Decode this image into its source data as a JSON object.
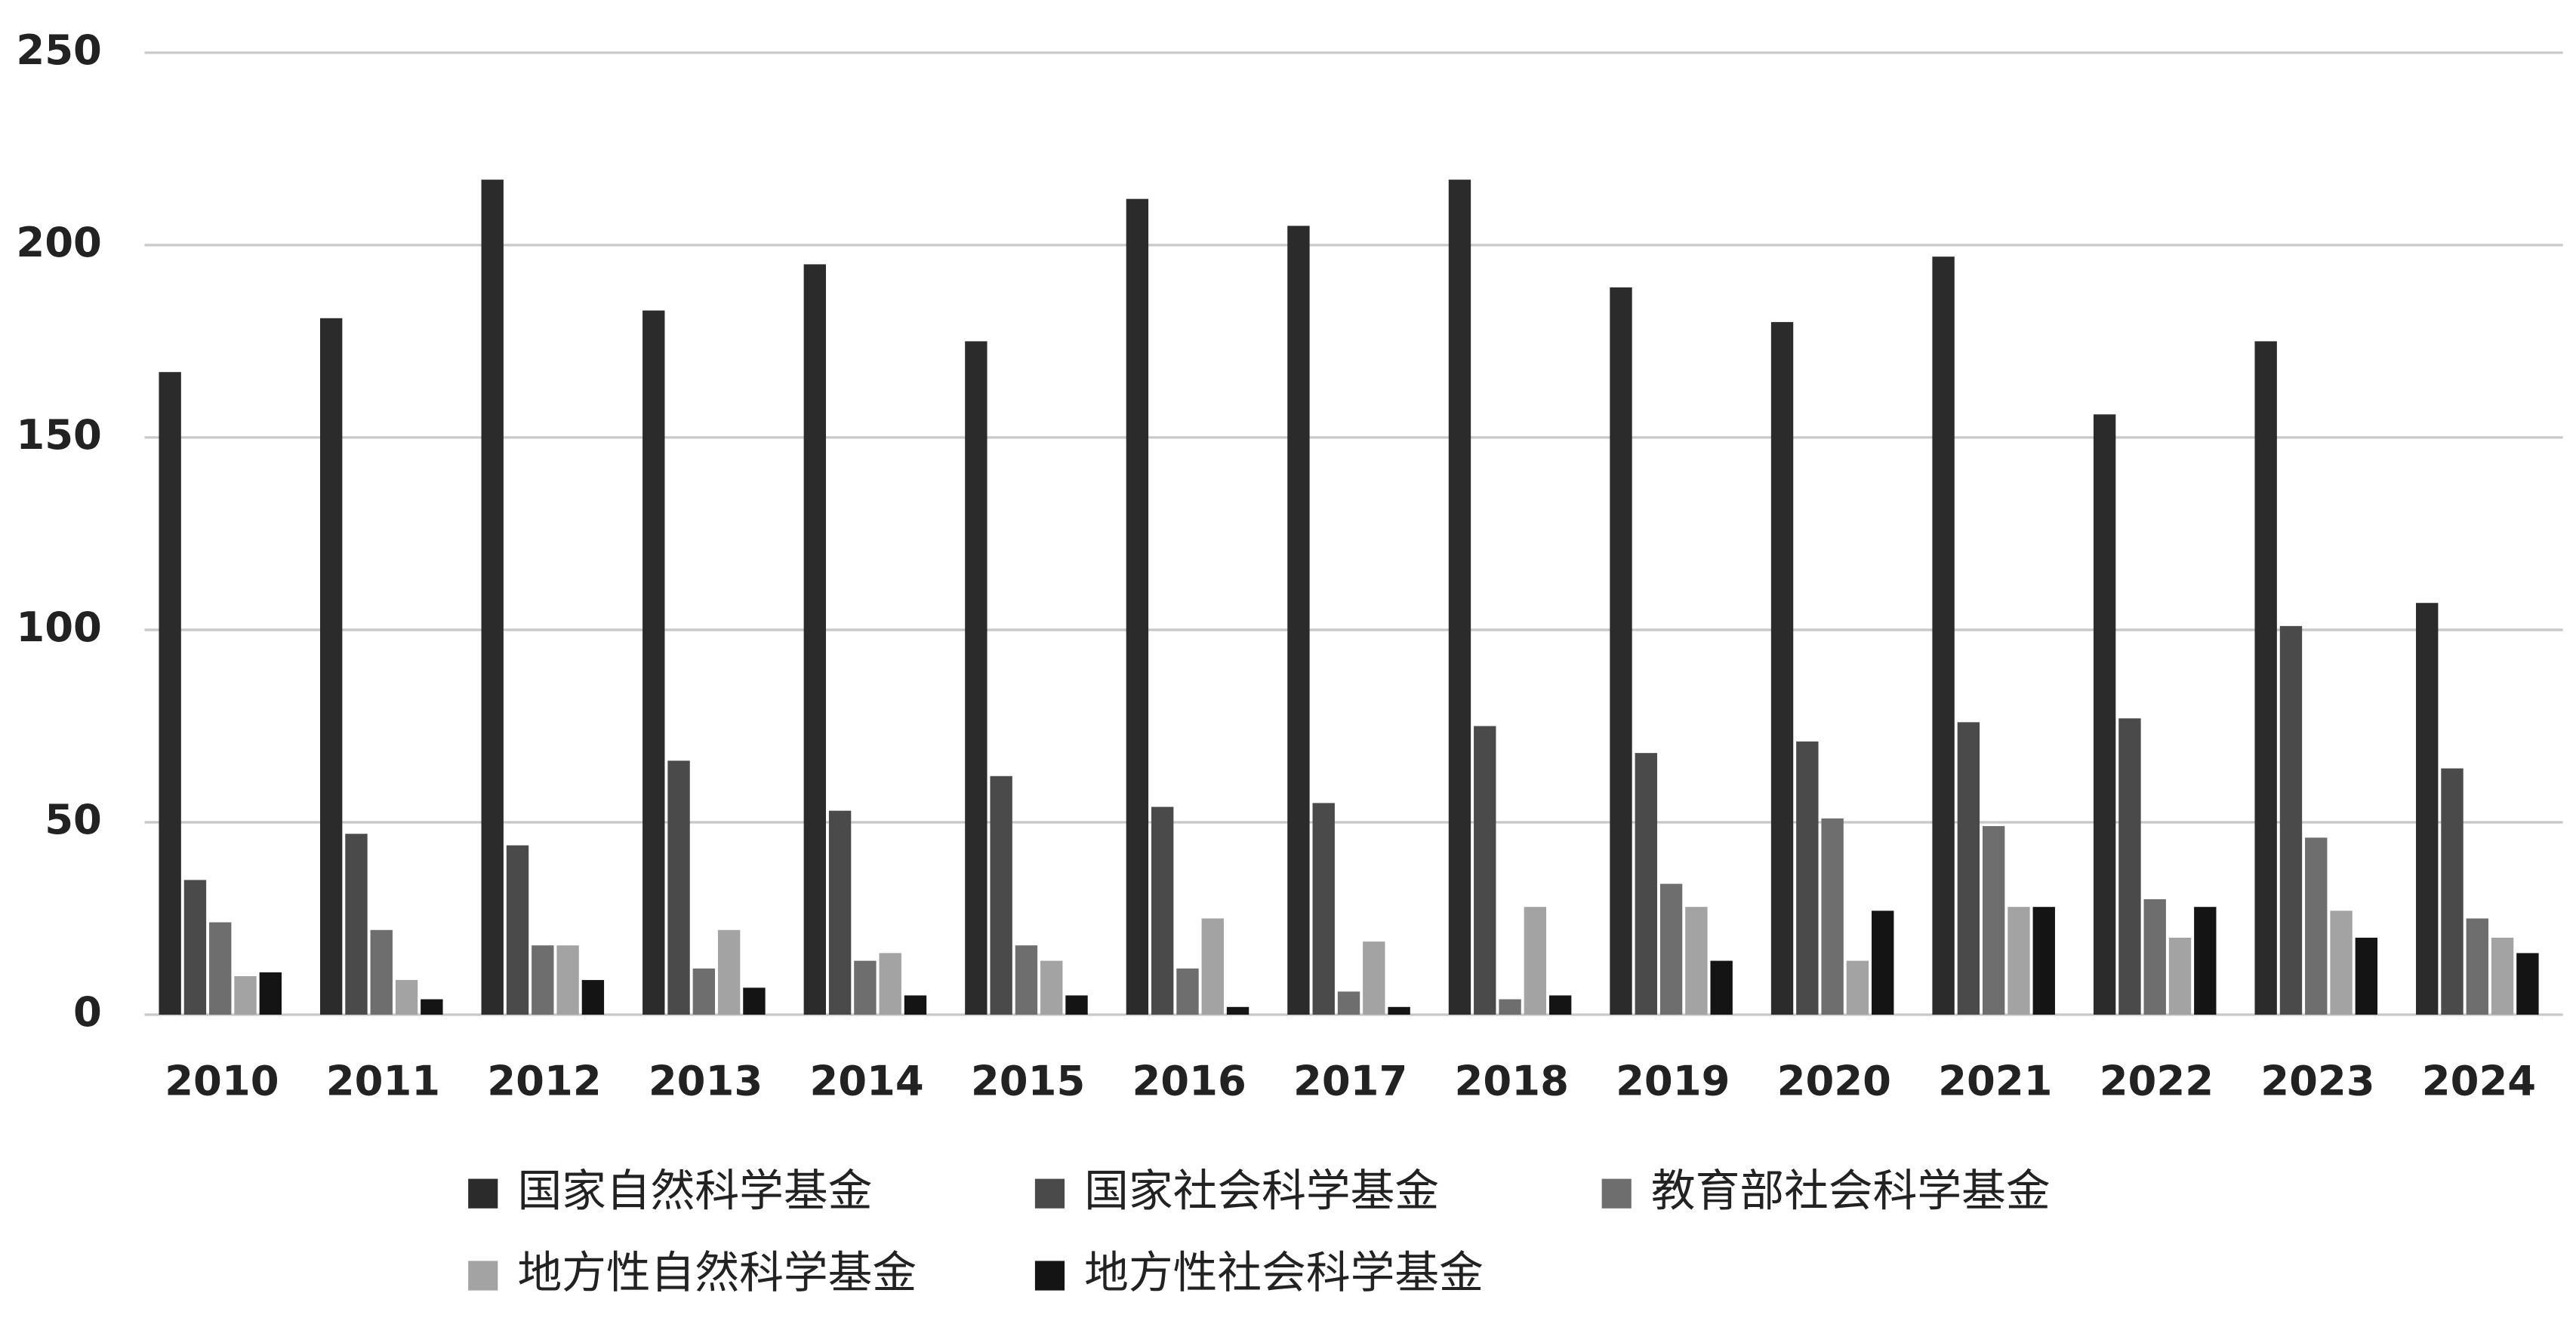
{
  "chart_data": {
    "type": "bar",
    "categories": [
      "2010",
      "2011",
      "2012",
      "2013",
      "2014",
      "2015",
      "2016",
      "2017",
      "2018",
      "2019",
      "2020",
      "2021",
      "2022",
      "2023",
      "2024"
    ],
    "series": [
      {
        "name": "国家自然科学基金",
        "color": "#2b2b2b",
        "values": [
          167,
          181,
          217,
          183,
          195,
          175,
          212,
          205,
          217,
          189,
          180,
          197,
          156,
          175,
          107
        ]
      },
      {
        "name": "国家社会科学基金",
        "color": "#4a4a4a",
        "values": [
          35,
          47,
          44,
          66,
          53,
          62,
          54,
          55,
          75,
          68,
          71,
          76,
          77,
          101,
          64
        ]
      },
      {
        "name": "教育部社会科学基金",
        "color": "#6e6e6e",
        "values": [
          24,
          22,
          18,
          12,
          14,
          18,
          12,
          6,
          4,
          34,
          51,
          49,
          30,
          46,
          25
        ]
      },
      {
        "name": "地方性自然科学基金",
        "color": "#a3a3a3",
        "values": [
          10,
          9,
          18,
          22,
          16,
          14,
          25,
          19,
          28,
          28,
          14,
          28,
          20,
          27,
          20
        ]
      },
      {
        "name": "地方性社会科学基金",
        "color": "#141414",
        "values": [
          11,
          4,
          9,
          7,
          5,
          5,
          2,
          2,
          5,
          14,
          27,
          28,
          28,
          20,
          16
        ]
      }
    ],
    "ylim": [
      0,
      250
    ],
    "yticks": [
      0,
      50,
      100,
      150,
      200,
      250
    ],
    "grid": true,
    "legend": "bottom"
  }
}
